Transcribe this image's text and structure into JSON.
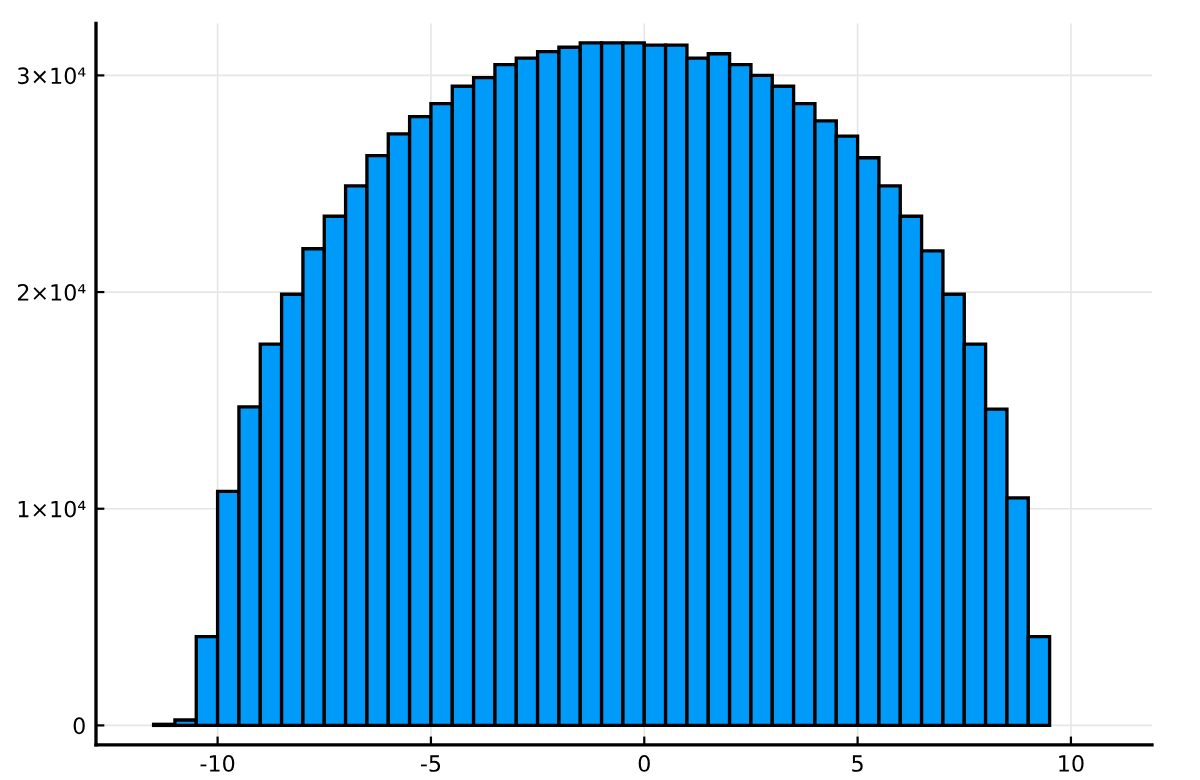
{
  "chart_data": {
    "type": "histogram",
    "bins": [
      -11.5,
      -11,
      -10.5,
      -10,
      -9.5,
      -9,
      -8.5,
      -8,
      -7.5,
      -7,
      -6.5,
      -6,
      -5.5,
      -5,
      -4.5,
      -4,
      -3.5,
      -3,
      -2.5,
      -2,
      -1.5,
      -1,
      -0.5,
      0,
      0.5,
      1,
      1.5,
      2,
      2.5,
      3,
      3.5,
      4,
      4.5,
      5,
      5.5,
      6,
      6.5,
      7,
      7.5,
      8,
      8.5,
      9,
      9.5
    ],
    "values": [
      50,
      250,
      4100,
      10800,
      14700,
      17600,
      19900,
      22000,
      23500,
      24900,
      26300,
      27300,
      28100,
      28700,
      29500,
      29900,
      30500,
      30800,
      31100,
      31300,
      31500,
      31500,
      31500,
      31400,
      31400,
      30800,
      31000,
      30500,
      30000,
      29500,
      28700,
      27900,
      27200,
      26200,
      24900,
      23500,
      21900,
      19900,
      17600,
      14600,
      10500,
      4100
    ],
    "color": "#009af9",
    "xlim": [
      -12.85,
      11.9
    ],
    "ylim": [
      -900,
      32400
    ],
    "xticks": [
      -10,
      -5,
      0,
      5,
      10
    ],
    "yticks": [
      {
        "value": 0,
        "label": "0"
      },
      {
        "value": 10000,
        "label": "1×10⁴"
      },
      {
        "value": 20000,
        "label": "2×10⁴"
      },
      {
        "value": 30000,
        "label": "3×10⁴"
      }
    ],
    "grid": true,
    "legend": false
  }
}
